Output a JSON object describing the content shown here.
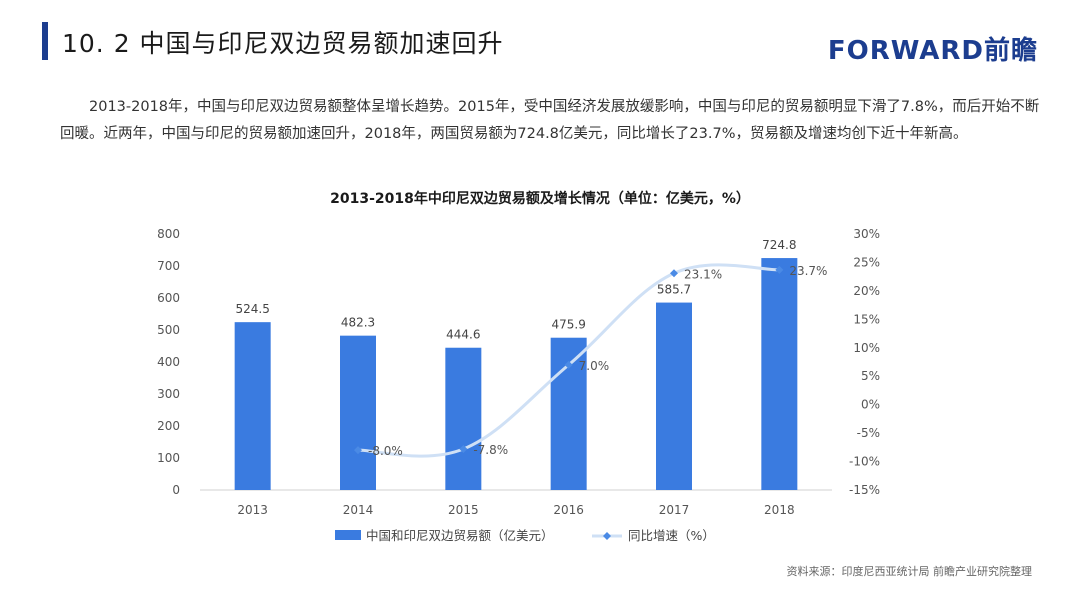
{
  "header": {
    "title": "10. 2  中国与印尼双边贸易额加速回升",
    "logo_text": "FORWARD前瞻"
  },
  "body_text": "2013-2018年，中国与印尼双边贸易额整体呈增长趋势。2015年，受中国经济发展放缓影响，中国与印尼的贸易额明显下滑了7.8%，而后开始不断回暖。近两年，中国与印尼的贸易额加速回升，2018年，两国贸易额为724.8亿美元，同比增长了23.7%，贸易额及增速均创下近十年新高。",
  "source": "资料来源：印度尼西亚统计局  前瞻产业研究院整理",
  "colors": {
    "accent": "#1c3d8f",
    "bar": "#3a7be0",
    "line": "#cfe0f5",
    "marker": "#4a8ae5"
  },
  "chart_data": {
    "type": "bar",
    "title": "2013-2018年中印尼双边贸易额及增长情况（单位：亿美元，%）",
    "categories": [
      "2013",
      "2014",
      "2015",
      "2016",
      "2017",
      "2018"
    ],
    "series": [
      {
        "name": "中国和印尼双边贸易额（亿美元）",
        "type": "bar",
        "axis": "left",
        "values": [
          524.5,
          482.3,
          444.6,
          475.9,
          585.7,
          724.8
        ],
        "labels": [
          "524.5",
          "482.3",
          "444.6",
          "475.9",
          "585.7",
          "724.8"
        ]
      },
      {
        "name": "同比增速（%）",
        "type": "line",
        "axis": "right",
        "values": [
          null,
          -8.0,
          -7.8,
          7.0,
          23.1,
          23.7
        ],
        "labels": [
          "",
          "-8.0%",
          "-7.8%",
          "7.0%",
          "23.1%",
          "23.7%"
        ]
      }
    ],
    "y_left": {
      "ylim": [
        0,
        800
      ],
      "ticks": [
        "0",
        "100",
        "200",
        "300",
        "400",
        "500",
        "600",
        "700",
        "800"
      ]
    },
    "y_right": {
      "ylim": [
        -15,
        30
      ],
      "ticks": [
        "-15%",
        "-10%",
        "-5%",
        "0%",
        "5%",
        "10%",
        "15%",
        "20%",
        "25%",
        "30%"
      ]
    },
    "legend_position": "bottom",
    "grid": false
  }
}
